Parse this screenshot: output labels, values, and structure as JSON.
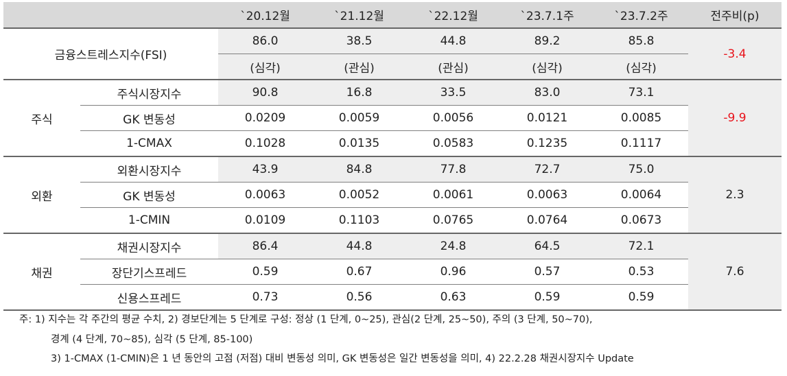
{
  "header": {
    "columns": [
      "",
      "",
      "`20.12월",
      "`21.12월",
      "`22.12월",
      "`23.7.1주",
      "`23.7.2주",
      "전주비(p)"
    ]
  },
  "fsi": {
    "label": "금융스트레스지수(FSI)",
    "values": [
      "86.0",
      "38.5",
      "44.8",
      "89.2",
      "85.8"
    ],
    "levels": [
      "(심각)",
      "(관심)",
      "(관심)",
      "(심각)",
      "(심각)"
    ],
    "change": "-3.4"
  },
  "groups": [
    {
      "name": "주식",
      "change": "-9.9",
      "rows": [
        {
          "label": "주식시장지수",
          "values": [
            "90.8",
            "16.8",
            "33.5",
            "83.0",
            "73.1"
          ]
        },
        {
          "label": "GK 변동성",
          "values": [
            "0.0209",
            "0.0059",
            "0.0056",
            "0.0121",
            "0.0085"
          ]
        },
        {
          "label": "1-CMAX",
          "values": [
            "0.1028",
            "0.0135",
            "0.0583",
            "0.1235",
            "0.1117"
          ]
        }
      ]
    },
    {
      "name": "외환",
      "change": "2.3",
      "rows": [
        {
          "label": "외환시장지수",
          "values": [
            "43.9",
            "84.8",
            "77.8",
            "72.7",
            "75.0"
          ]
        },
        {
          "label": "GK 변동성",
          "values": [
            "0.0063",
            "0.0052",
            "0.0061",
            "0.0063",
            "0.0064"
          ]
        },
        {
          "label": "1-CMIN",
          "values": [
            "0.0109",
            "0.1103",
            "0.0765",
            "0.0764",
            "0.0673"
          ]
        }
      ]
    },
    {
      "name": "채권",
      "change": "7.6",
      "rows": [
        {
          "label": "채권시장지수",
          "values": [
            "86.4",
            "44.8",
            "24.8",
            "64.5",
            "72.1"
          ]
        },
        {
          "label": "장단기스프레드",
          "values": [
            "0.59",
            "0.67",
            "0.96",
            "0.57",
            "0.53"
          ]
        },
        {
          "label": "신용스프레드",
          "values": [
            "0.73",
            "0.56",
            "0.63",
            "0.59",
            "0.59"
          ]
        }
      ]
    }
  ],
  "notes": [
    "주: 1) 지수는 각 주간의 평균 수치, 2) 경보단계는 5 단계로 구성: 정상 (1 단계, 0~25), 관심(2 단계, 25~50), 주의 (3 단계, 50~70),",
    "경계 (4 단계, 70~85), 심각 (5 단계, 85-100)",
    "3) 1-CMAX (1-CMIN)은 1 년 동안의 고점 (저점) 대비 변동성 의미, GK 변동성은 일간 변동성을 의미, 4) 22.2.28 채권시장지수 Update"
  ],
  "colors": {
    "header_bg": "#d9d9d9",
    "shade_bg": "#eeeeee",
    "negative": "#e8141c"
  }
}
